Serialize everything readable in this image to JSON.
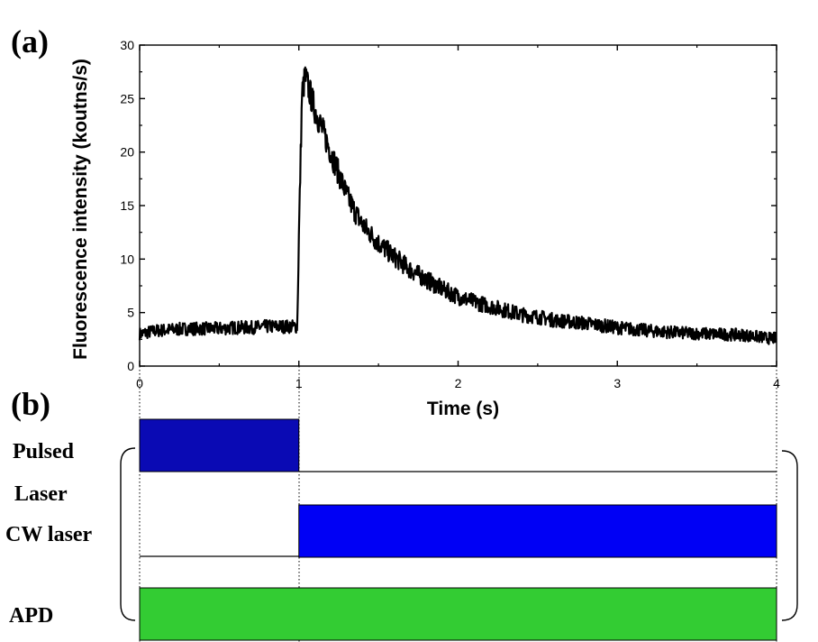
{
  "panels": {
    "a_label": "(a)",
    "b_label": "(b)"
  },
  "chart_data": {
    "type": "line",
    "xlabel": "Time (s)",
    "ylabel": "Fluorescence intensity (koutns/s)",
    "xlim": [
      0,
      4
    ],
    "ylim": [
      0,
      30
    ],
    "x_ticks": [
      0,
      1,
      2,
      3,
      4
    ],
    "y_ticks": [
      0,
      5,
      10,
      15,
      20,
      25,
      30
    ],
    "grid": false,
    "line_color": "#000000",
    "series": [
      {
        "x": [
          0,
          0.1,
          0.2,
          0.3,
          0.4,
          0.5,
          0.6,
          0.7,
          0.8,
          0.9,
          0.99,
          1.0,
          1.02,
          1.04,
          1.06,
          1.1,
          1.15,
          1.2,
          1.25,
          1.3,
          1.35,
          1.4,
          1.5,
          1.6,
          1.7,
          1.8,
          1.9,
          2.0,
          2.1,
          2.2,
          2.3,
          2.4,
          2.5,
          2.6,
          2.8,
          3.0,
          3.2,
          3.4,
          3.6,
          3.8,
          3.95,
          4.0
        ],
        "y": [
          3.0,
          3.3,
          3.4,
          3.5,
          3.5,
          3.5,
          3.6,
          3.6,
          3.7,
          3.7,
          3.7,
          12.0,
          25.5,
          27.0,
          26.0,
          24.0,
          22.0,
          20.0,
          18.0,
          16.0,
          14.5,
          13.2,
          11.5,
          10.2,
          9.0,
          8.1,
          7.2,
          6.5,
          6.0,
          5.6,
          5.2,
          4.8,
          4.6,
          4.3,
          4.0,
          3.6,
          3.3,
          3.1,
          3.0,
          2.9,
          2.6,
          2.6
        ]
      }
    ]
  },
  "timing": {
    "xlim": [
      0,
      4
    ],
    "rows": [
      {
        "label_line1": "Pulsed",
        "label_line2": "Laser",
        "on_start": 0,
        "on_end": 1,
        "color": "#0a0ab4"
      },
      {
        "label_line1": "CW laser",
        "on_start": 1,
        "on_end": 4,
        "color": "#0000f5"
      },
      {
        "label_line1": "APD",
        "on_start": 0,
        "on_end": 4,
        "color": "#33cc33"
      }
    ]
  }
}
